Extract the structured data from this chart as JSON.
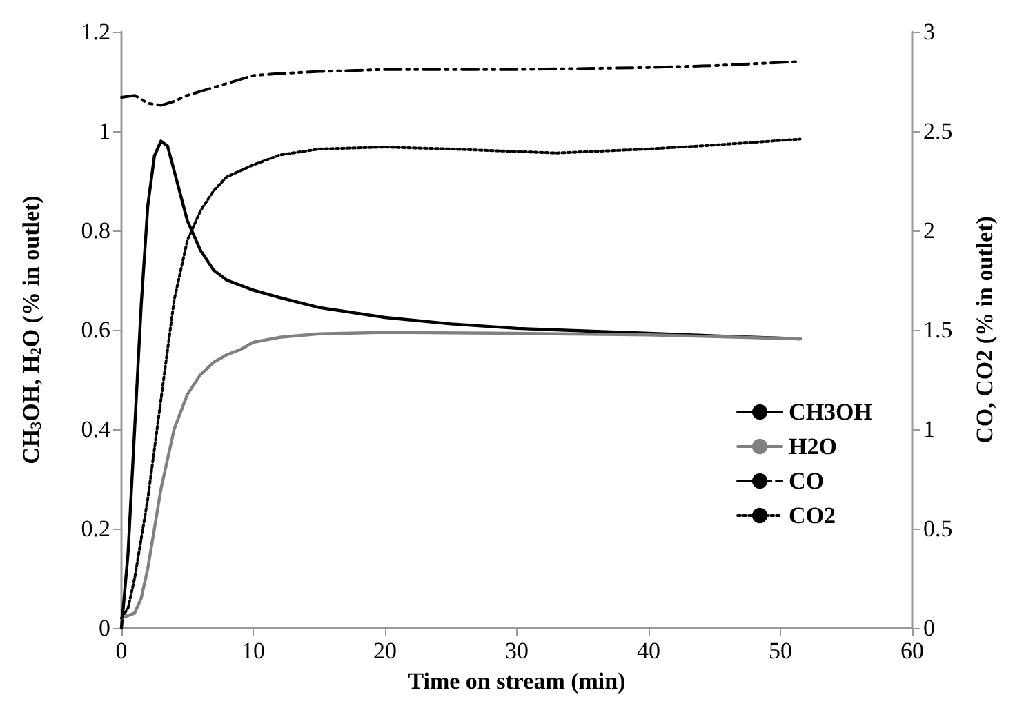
{
  "chart_data": {
    "type": "line",
    "xlabel": "Time on stream (min)",
    "ylabel": "CH$_{3}$OH, H$_{2}$O (% in outlet)",
    "y2label": "CO, CO2 (% in outlet)",
    "xlim": [
      0,
      60
    ],
    "xticks": [
      0,
      10,
      20,
      30,
      40,
      50,
      60
    ],
    "ylim": [
      0,
      1.2
    ],
    "yticks": [
      0,
      0.2,
      0.4,
      0.6,
      0.8,
      1,
      1.2
    ],
    "y2lim": [
      0,
      3
    ],
    "y2ticks": [
      0,
      0.5,
      1,
      1.5,
      2,
      2.5,
      3
    ],
    "grid": false,
    "legend": "bottom right",
    "marker": "none",
    "series": [
      {
        "name": "CH3OH",
        "color": "#000000",
        "line_style": "solid",
        "x": [
          0,
          0.5,
          1,
          1.5,
          2,
          2.5,
          3,
          3.5,
          4,
          5,
          6,
          7,
          8,
          10,
          12,
          15,
          20,
          25,
          30,
          35,
          40,
          45,
          51.5
        ],
        "values": [
          0.0,
          0.15,
          0.4,
          0.65,
          0.85,
          0.95,
          0.98,
          0.97,
          0.92,
          0.82,
          0.76,
          0.72,
          0.7,
          0.68,
          0.665,
          0.645,
          0.625,
          0.612,
          0.603,
          0.598,
          0.593,
          0.588,
          0.582
        ]
      },
      {
        "name": "H2O",
        "color": "#808080",
        "line_style": "solid",
        "x": [
          0,
          1,
          1.5,
          2,
          2.5,
          3,
          4,
          5,
          6,
          7,
          8,
          9,
          10,
          12,
          15,
          20,
          30,
          40,
          51.5
        ],
        "values": [
          0.02,
          0.03,
          0.06,
          0.12,
          0.2,
          0.28,
          0.4,
          0.47,
          0.51,
          0.535,
          0.55,
          0.56,
          0.575,
          0.585,
          0.592,
          0.595,
          0.593,
          0.59,
          0.582
        ]
      },
      {
        "name": "CO",
        "color": "#000000",
        "line_style": "dashed",
        "axis": "y2",
        "x": [
          0,
          1,
          2,
          3,
          4,
          5,
          6,
          7,
          8,
          10,
          12,
          15,
          20,
          30,
          40,
          45,
          51.5
        ],
        "values": [
          2.67,
          2.68,
          2.64,
          2.63,
          2.65,
          2.68,
          2.7,
          2.72,
          2.74,
          2.78,
          2.79,
          2.8,
          2.81,
          2.81,
          2.82,
          2.83,
          2.85
        ]
      },
      {
        "name": "CO2",
        "color": "#000000",
        "line_style": "dotted",
        "axis": "y2",
        "x": [
          0,
          0.5,
          1,
          1.5,
          2,
          2.5,
          3,
          3.5,
          4,
          5,
          6,
          7,
          8,
          10,
          12,
          15,
          20,
          25,
          33,
          40,
          45,
          51.5
        ],
        "values": [
          0.05,
          0.1,
          0.25,
          0.45,
          0.65,
          0.9,
          1.15,
          1.4,
          1.65,
          1.95,
          2.1,
          2.2,
          2.27,
          2.33,
          2.38,
          2.41,
          2.42,
          2.41,
          2.39,
          2.41,
          2.43,
          2.46
        ]
      }
    ]
  }
}
